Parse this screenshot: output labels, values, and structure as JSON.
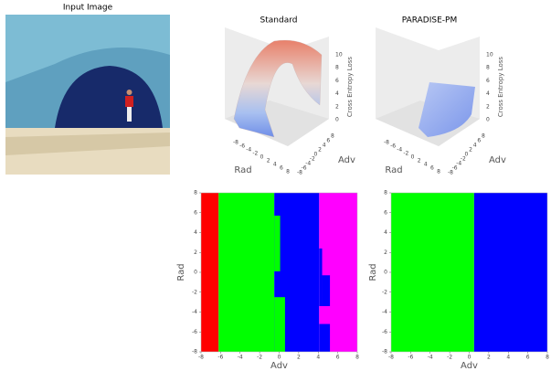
{
  "input_image": {
    "title": "Input Image"
  },
  "surfaces": [
    {
      "title": "Standard",
      "zlabel": "Cross Entropy Loss",
      "xlabel": "Rad",
      "ylabel": "Adv",
      "zticks": [
        0,
        2,
        4,
        6,
        8,
        10
      ],
      "xticks": [
        -8,
        -6,
        -4,
        -2,
        0,
        2,
        4,
        6,
        8
      ],
      "yticks": [
        -8,
        -6,
        -4,
        -2,
        0,
        2,
        4,
        6,
        8
      ]
    },
    {
      "title": "PARADISE-PM",
      "zlabel": "Cross Entropy Loss",
      "xlabel": "Rad",
      "ylabel": "Adv",
      "zticks": [
        0,
        2,
        4,
        6,
        8,
        10
      ],
      "xticks": [
        -8,
        -6,
        -4,
        -2,
        0,
        2,
        4,
        6,
        8
      ],
      "yticks": [
        -8,
        -6,
        -4,
        -2,
        0,
        2,
        4,
        6,
        8
      ]
    }
  ],
  "regions": [
    {
      "xlabel": "Adv",
      "ylabel": "Rad",
      "xlim": [
        -8,
        8
      ],
      "ylim": [
        -8,
        8
      ],
      "xticks": [
        -8,
        -6,
        -4,
        -2,
        0,
        2,
        4,
        6,
        8
      ],
      "yticks": [
        -8,
        -6,
        -4,
        -2,
        0,
        2,
        4,
        6,
        8
      ],
      "cells": [
        {
          "x": [
            -8,
            -6.2
          ],
          "y": [
            -8,
            8
          ],
          "color": "#ff0000"
        },
        {
          "x": [
            -6.2,
            -0.5
          ],
          "y": [
            -8,
            8
          ],
          "color": "#00ff00"
        },
        {
          "x": [
            -0.5,
            4.1
          ],
          "y": [
            -8,
            8
          ],
          "color": "#0000ff"
        },
        {
          "x": [
            -0.5,
            0.1
          ],
          "y": [
            0.1,
            5.7
          ],
          "color": "#00ff00"
        },
        {
          "x": [
            -0.5,
            0.6
          ],
          "y": [
            -8,
            -2.5
          ],
          "color": "#00ff00"
        },
        {
          "x": [
            4.1,
            8
          ],
          "y": [
            -8,
            8
          ],
          "color": "#ff00ff"
        },
        {
          "x": [
            4.1,
            4.4
          ],
          "y": [
            -3.4,
            2.4
          ],
          "color": "#0000ff"
        },
        {
          "x": [
            4.4,
            5.2
          ],
          "y": [
            -3.4,
            -0.3
          ],
          "color": "#0000ff"
        },
        {
          "x": [
            4.1,
            5.2
          ],
          "y": [
            -8,
            -5.2
          ],
          "color": "#0000ff"
        }
      ]
    },
    {
      "xlabel": "Adv",
      "ylabel": "Rad",
      "xlim": [
        -8,
        8
      ],
      "ylim": [
        -8,
        8
      ],
      "xticks": [
        -8,
        -6,
        -4,
        -2,
        0,
        2,
        4,
        6,
        8
      ],
      "yticks": [
        -8,
        -6,
        -4,
        -2,
        0,
        2,
        4,
        6,
        8
      ],
      "cells": [
        {
          "x": [
            -8,
            0.5
          ],
          "y": [
            -8,
            8
          ],
          "color": "#00ff00"
        },
        {
          "x": [
            0.5,
            8
          ],
          "y": [
            -8,
            8
          ],
          "color": "#0000ff"
        }
      ]
    }
  ]
}
